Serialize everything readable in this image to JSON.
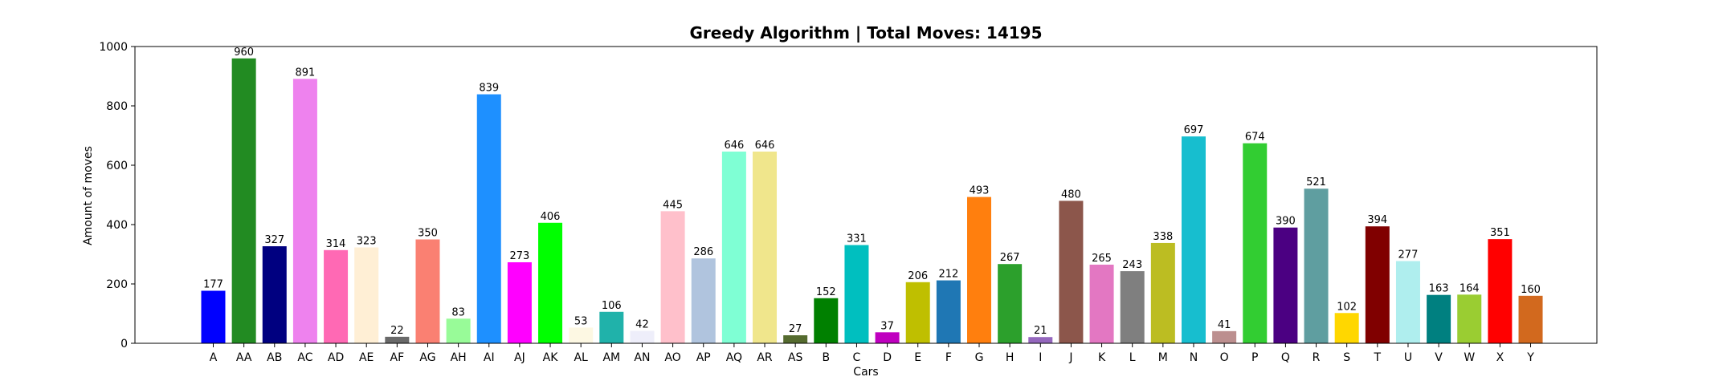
{
  "chart_data": {
    "type": "bar",
    "title": "Greedy Algorithm | Total Moves: 14195",
    "xlabel": "Cars",
    "ylabel": "Amount of moves",
    "ylim": [
      0,
      1000
    ],
    "yticks": [
      0,
      200,
      400,
      600,
      800,
      1000
    ],
    "grid": false,
    "legend": "none",
    "bars": [
      {
        "label": "A",
        "value": 177,
        "color": "#0000ff"
      },
      {
        "label": "AA",
        "value": 960,
        "color": "#228b22"
      },
      {
        "label": "AB",
        "value": 327,
        "color": "#000080"
      },
      {
        "label": "AC",
        "value": 891,
        "color": "#ee82ee"
      },
      {
        "label": "AD",
        "value": 314,
        "color": "#ff69b4"
      },
      {
        "label": "AE",
        "value": 323,
        "color": "#ffefd5"
      },
      {
        "label": "AF",
        "value": 22,
        "color": "#696969"
      },
      {
        "label": "AG",
        "value": 350,
        "color": "#fa8072"
      },
      {
        "label": "AH",
        "value": 83,
        "color": "#98fb98"
      },
      {
        "label": "AI",
        "value": 839,
        "color": "#1e90ff"
      },
      {
        "label": "AJ",
        "value": 273,
        "color": "#ff00ff"
      },
      {
        "label": "AK",
        "value": 406,
        "color": "#00ff00"
      },
      {
        "label": "AL",
        "value": 53,
        "color": "#fdf8e3"
      },
      {
        "label": "AM",
        "value": 106,
        "color": "#20b2aa"
      },
      {
        "label": "AN",
        "value": 42,
        "color": "#eeeefa"
      },
      {
        "label": "AO",
        "value": 445,
        "color": "#ffc0cb"
      },
      {
        "label": "AP",
        "value": 286,
        "color": "#b0c4de"
      },
      {
        "label": "AQ",
        "value": 646,
        "color": "#7fffd4"
      },
      {
        "label": "AR",
        "value": 646,
        "color": "#f0e68c"
      },
      {
        "label": "AS",
        "value": 27,
        "color": "#556b2f"
      },
      {
        "label": "B",
        "value": 152,
        "color": "#008000"
      },
      {
        "label": "C",
        "value": 331,
        "color": "#00bfbf"
      },
      {
        "label": "D",
        "value": 37,
        "color": "#bf00bf"
      },
      {
        "label": "E",
        "value": 206,
        "color": "#bfbf00"
      },
      {
        "label": "F",
        "value": 212,
        "color": "#1f77b4"
      },
      {
        "label": "G",
        "value": 493,
        "color": "#ff7f0e"
      },
      {
        "label": "H",
        "value": 267,
        "color": "#2ca02c"
      },
      {
        "label": "I",
        "value": 21,
        "color": "#9467bd"
      },
      {
        "label": "J",
        "value": 480,
        "color": "#8c564b"
      },
      {
        "label": "K",
        "value": 265,
        "color": "#e377c2"
      },
      {
        "label": "L",
        "value": 243,
        "color": "#7f7f7f"
      },
      {
        "label": "M",
        "value": 338,
        "color": "#bcbd22"
      },
      {
        "label": "N",
        "value": 697,
        "color": "#17becf"
      },
      {
        "label": "O",
        "value": 41,
        "color": "#bc8f8f"
      },
      {
        "label": "P",
        "value": 674,
        "color": "#32cd32"
      },
      {
        "label": "Q",
        "value": 390,
        "color": "#4b0082"
      },
      {
        "label": "R",
        "value": 521,
        "color": "#5f9ea0"
      },
      {
        "label": "S",
        "value": 102,
        "color": "#ffd700"
      },
      {
        "label": "T",
        "value": 394,
        "color": "#800000"
      },
      {
        "label": "U",
        "value": 277,
        "color": "#afeeee"
      },
      {
        "label": "V",
        "value": 163,
        "color": "#008080"
      },
      {
        "label": "W",
        "value": 164,
        "color": "#9acd32"
      },
      {
        "label": "X",
        "value": 351,
        "color": "#ff0000"
      },
      {
        "label": "Y",
        "value": 160,
        "color": "#d2691e"
      }
    ]
  }
}
